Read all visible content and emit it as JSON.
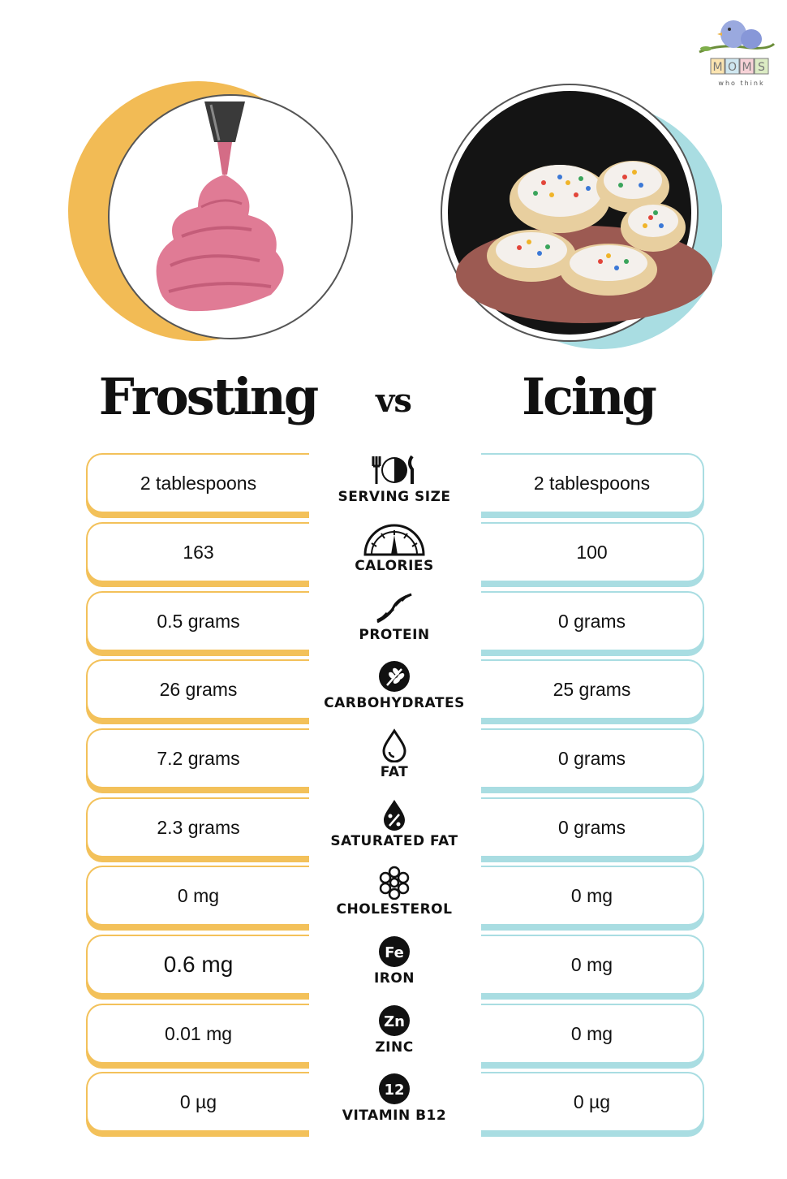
{
  "logo": {
    "letters": [
      "M",
      "O",
      "M",
      "S"
    ],
    "tagline": "who think"
  },
  "header": {
    "left_title": "Frosting",
    "vs": "vs",
    "right_title": "Icing"
  },
  "colors": {
    "left_accent": "#f3c15a",
    "right_accent": "#a9dde2"
  },
  "rows": [
    {
      "label": "SERVING SIZE",
      "icon": "utensils-plate-icon",
      "frosting": "2 tablespoons",
      "icing": "2 tablespoons"
    },
    {
      "label": "CALORIES",
      "icon": "gauge-icon",
      "frosting": "163",
      "icing": "100"
    },
    {
      "label": "PROTEIN",
      "icon": "dna-icon",
      "frosting": "0.5 grams",
      "icing": "0 grams"
    },
    {
      "label": "CARBOHYDRATES",
      "icon": "wheat-icon",
      "frosting": "26 grams",
      "icing": "25 grams"
    },
    {
      "label": "FAT",
      "icon": "droplet-icon",
      "frosting": "7.2 grams",
      "icing": "0 grams"
    },
    {
      "label": "SATURATED FAT",
      "icon": "percent-drop-icon",
      "frosting": "2.3 grams",
      "icing": "0 grams"
    },
    {
      "label": "CHOLESTEROL",
      "icon": "molecule-icon",
      "frosting": "0 mg",
      "icing": "0 mg"
    },
    {
      "label": "IRON",
      "icon": "iron-badge-icon",
      "badge": "Fe",
      "frosting": "0.6 mg",
      "icing": "0 mg"
    },
    {
      "label": "ZINC",
      "icon": "zinc-badge-icon",
      "badge": "Zn",
      "frosting": "0.01 mg",
      "icing": "0 mg"
    },
    {
      "label": "VITAMIN B12",
      "icon": "b12-badge-icon",
      "badge": "12",
      "frosting": "0 µg",
      "icing": "0 µg"
    }
  ]
}
